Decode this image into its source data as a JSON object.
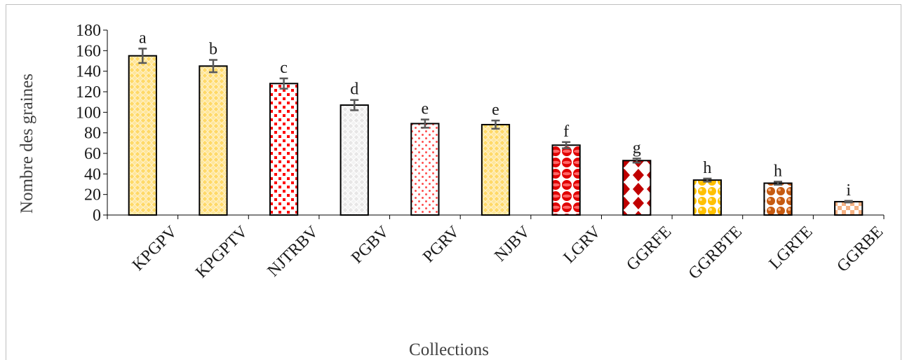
{
  "chart_data": {
    "type": "bar",
    "title": "",
    "xlabel": "Collections",
    "ylabel": "Nombre des graines",
    "ylim": [
      0,
      180
    ],
    "yticks": [
      0,
      20,
      40,
      60,
      80,
      100,
      120,
      140,
      160,
      180
    ],
    "grid": false,
    "legend": "none",
    "categories": [
      "KPGPV",
      "KPGPTV",
      "NJTRBV",
      "PGBV",
      "PGRV",
      "NJBV",
      "LGRV",
      "GGRFE",
      "GGRBTE",
      "LGRTE",
      "GGRBE"
    ],
    "values": [
      155,
      145,
      128,
      107,
      89,
      88,
      68,
      53,
      34,
      31,
      13
    ],
    "errors": [
      7,
      6,
      5,
      5,
      4,
      4,
      3,
      2,
      1.5,
      1.5,
      0.8
    ],
    "significance_letters": [
      "a",
      "b",
      "c",
      "d",
      "e",
      "e",
      "f",
      "g",
      "h",
      "h",
      "i"
    ],
    "bar_patterns": [
      "yellow-mesh",
      "yellow-mesh",
      "red-dots",
      "grey-mesh",
      "pink-dots",
      "yellow-mesh",
      "red-spheres",
      "red-diamonds",
      "yellow-spheres",
      "brown-spheres",
      "orange-checker"
    ],
    "colors": {
      "yellow-mesh": "#ffd966",
      "red-dots": "#ff0000",
      "grey-mesh": "#d9d9d9",
      "pink-dots": "#ff5050",
      "red-spheres": "#e00000",
      "red-diamonds": "#c00000",
      "yellow-spheres": "#ffc000",
      "brown-spheres": "#c55a11",
      "orange-checker": "#f4b183",
      "error_bar": "#595959",
      "axis": "#000000"
    }
  }
}
